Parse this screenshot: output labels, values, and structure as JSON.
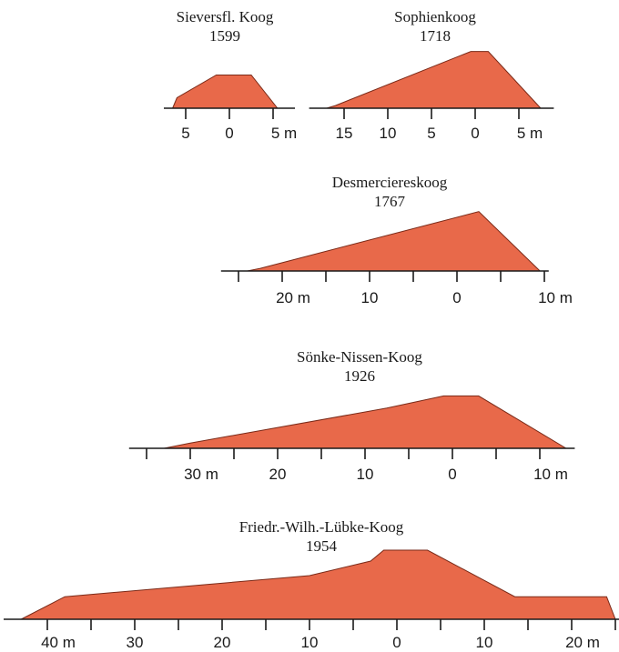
{
  "colors": {
    "fill": "#e8694a",
    "stroke": "#7a2a18",
    "axis": "#1a1a1a"
  },
  "dikes": [
    {
      "name": "Sieversfl. Koog",
      "year": "1599",
      "profile_m": [
        [
          -6.5,
          0
        ],
        [
          -6,
          1.2
        ],
        [
          -1.5,
          3.8
        ],
        [
          2.5,
          3.8
        ],
        [
          5.5,
          0
        ]
      ],
      "axis_range_m": [
        -7.5,
        7.5
      ],
      "ticks_m": [
        -5,
        0,
        5
      ],
      "tick_labels": [
        "5",
        "0",
        "5 m"
      ]
    },
    {
      "name": "Sophienkoog",
      "year": "1718",
      "profile_m": [
        [
          -17,
          0
        ],
        [
          -16,
          0.3
        ],
        [
          -0.5,
          6.5
        ],
        [
          1.5,
          6.5
        ],
        [
          7.5,
          0
        ]
      ],
      "axis_range_m": [
        -19,
        9
      ],
      "ticks_m": [
        -15,
        -10,
        -5,
        0,
        5
      ],
      "tick_labels": [
        "15",
        "10",
        "5",
        "0",
        "5 m"
      ]
    },
    {
      "name": "Desmercieres­koog",
      "year": "1767",
      "profile_m": [
        [
          -24,
          0
        ],
        [
          -22.5,
          0.3
        ],
        [
          2.5,
          6.8
        ],
        [
          9.5,
          0
        ]
      ],
      "axis_range_m": [
        -27,
        10.5
      ],
      "ticks_m": [
        -25,
        -20,
        -15,
        -10,
        -5,
        0,
        5,
        10
      ],
      "tick_labels": [
        "",
        "20 m",
        "",
        "10",
        "",
        "0",
        "",
        "10 m"
      ]
    },
    {
      "name": "Sönke-Nissen-Koog",
      "year": "1926",
      "profile_m": [
        [
          -33,
          0
        ],
        [
          -30,
          0.6
        ],
        [
          -7.5,
          4.6
        ],
        [
          -1,
          6.0
        ],
        [
          3,
          6.0
        ],
        [
          13,
          0
        ]
      ],
      "axis_range_m": [
        -37,
        14
      ],
      "ticks_m": [
        -35,
        -30,
        -25,
        -20,
        -15,
        -10,
        -5,
        0,
        5,
        10
      ],
      "tick_labels": [
        "",
        "30 m",
        "",
        "20",
        "",
        "10",
        "",
        "0",
        "",
        "10 m"
      ]
    },
    {
      "name": "Friedr.-Wilh.-Lübke-Koog",
      "year": "1954",
      "profile_m": [
        [
          -43,
          0
        ],
        [
          -38,
          3.1
        ],
        [
          -10,
          6.0
        ],
        [
          -3,
          8.0
        ],
        [
          -1.5,
          9.5
        ],
        [
          3.5,
          9.5
        ],
        [
          13.5,
          3.1
        ],
        [
          24,
          3.1
        ],
        [
          25,
          0
        ]
      ],
      "axis_range_m": [
        -45,
        25.5
      ],
      "ticks_m": [
        -40,
        -35,
        -30,
        -25,
        -20,
        -15,
        -10,
        -5,
        0,
        5,
        10,
        15,
        20,
        25
      ],
      "tick_labels": [
        "40 m",
        "",
        "30",
        "",
        "20",
        "",
        "10",
        "",
        "0",
        "",
        "10",
        "",
        "20 m",
        ""
      ]
    }
  ]
}
